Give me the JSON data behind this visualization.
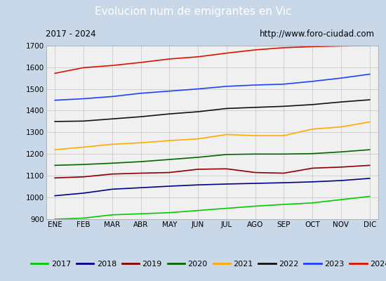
{
  "title": "Evolucion num de emigrantes en Vic",
  "title_bg": "#4d8fcc",
  "subtitle_left": "2017 - 2024",
  "subtitle_right": "http://www.foro-ciudad.com",
  "x_labels": [
    "ENE",
    "FEB",
    "MAR",
    "ABR",
    "MAY",
    "JUN",
    "JUL",
    "AGO",
    "SEP",
    "OCT",
    "NOV",
    "DIC"
  ],
  "ylim": [
    900,
    1700
  ],
  "yticks": [
    900,
    1000,
    1100,
    1200,
    1300,
    1400,
    1500,
    1600,
    1700
  ],
  "series": {
    "2017": {
      "color": "#00cc00",
      "data": [
        900,
        905,
        920,
        925,
        930,
        940,
        950,
        960,
        968,
        975,
        990,
        1005
      ]
    },
    "2018": {
      "color": "#00008b",
      "data": [
        1008,
        1020,
        1038,
        1045,
        1052,
        1058,
        1062,
        1065,
        1068,
        1072,
        1078,
        1088
      ]
    },
    "2019": {
      "color": "#8b0000",
      "data": [
        1090,
        1095,
        1108,
        1112,
        1115,
        1130,
        1132,
        1115,
        1112,
        1135,
        1140,
        1148
      ]
    },
    "2020": {
      "color": "#006600",
      "data": [
        1148,
        1152,
        1158,
        1165,
        1175,
        1185,
        1198,
        1200,
        1200,
        1202,
        1210,
        1220
      ]
    },
    "2021": {
      "color": "#ffaa00",
      "data": [
        1220,
        1232,
        1245,
        1252,
        1262,
        1270,
        1290,
        1285,
        1285,
        1315,
        1325,
        1348
      ]
    },
    "2022": {
      "color": "#111111",
      "data": [
        1350,
        1352,
        1362,
        1372,
        1385,
        1395,
        1410,
        1415,
        1420,
        1428,
        1440,
        1450
      ]
    },
    "2023": {
      "color": "#1e40ff",
      "data": [
        1448,
        1455,
        1465,
        1480,
        1490,
        1500,
        1512,
        1518,
        1522,
        1535,
        1550,
        1568
      ]
    },
    "2024": {
      "color": "#dd1100",
      "data": [
        1572,
        1598,
        1608,
        1622,
        1638,
        1648,
        1665,
        1680,
        1690,
        1695,
        1698,
        1700
      ]
    }
  },
  "legend_order": [
    "2017",
    "2018",
    "2019",
    "2020",
    "2021",
    "2022",
    "2023",
    "2024"
  ],
  "outer_bg": "#c8d8e8",
  "plot_bg": "#f0f0f0",
  "subtitle_bg": "#e8e8e8",
  "grid_color": "#cccccc"
}
